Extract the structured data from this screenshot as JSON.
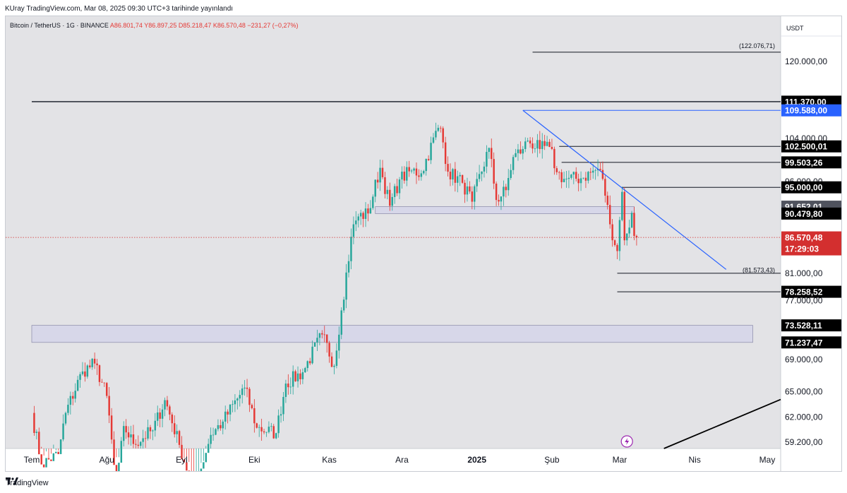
{
  "header": {
    "published": "KUray TradingView.com, Mar 08, 2025 09:30 UTC+3 tarihinde yayınlandı"
  },
  "footer": {
    "brand": "TradingView"
  },
  "colors": {
    "up": "#26a69a",
    "down": "#e53935",
    "trendline": "#2962ff",
    "current_price_bg": "#d32f2f",
    "highlight_label_bg": "#2962ff",
    "label_bg": "#000000"
  },
  "chart_data": {
    "type": "candlestick",
    "title": "Bitcoin / TetherUS · 1G · BINANCE",
    "ohlc_legend": {
      "open": "A86.801,74",
      "high": "Y86.897,25",
      "low": "D85.218,47",
      "close": "K86.570,48",
      "change": "−231,27 (−0,27%)"
    },
    "currency": "USDT",
    "y_ticks": [
      "120.000,00",
      "104.000,00",
      "96.000,00",
      "81.000,00",
      "77.000,00",
      "69.000,00",
      "65.000,00",
      "62.000,00",
      "59.200,00"
    ],
    "y_tick_values": [
      120000,
      104000,
      96000,
      81000,
      77000,
      69000,
      65000,
      62000,
      59200
    ],
    "x_ticks": [
      "Tem",
      "Ağu",
      "Eyl",
      "Eki",
      "Kas",
      "Ara",
      "2025",
      "Şub",
      "Mar",
      "Nis",
      "May"
    ],
    "x_tick_dates": [
      "2024-07-01",
      "2024-08-01",
      "2024-09-01",
      "2024-10-01",
      "2024-11-01",
      "2024-12-01",
      "2025-01-01",
      "2025-02-01",
      "2025-03-01",
      "2025-04-01",
      "2025-05-01"
    ],
    "price_labels": [
      {
        "text": "111.370,00",
        "value": 111370,
        "style": "black"
      },
      {
        "text": "109.588,00",
        "value": 109588,
        "style": "blue"
      },
      {
        "text": "102.500,01",
        "value": 102500.01,
        "style": "black"
      },
      {
        "text": "99.503,26",
        "value": 99503.26,
        "style": "black"
      },
      {
        "text": "95.000,00",
        "value": 95000,
        "style": "black"
      },
      {
        "text": "91.652,01",
        "value": 91652.01,
        "style": "grey"
      },
      {
        "text": "90.479,80",
        "value": 90479.8,
        "style": "black"
      },
      {
        "text": "86.570,48",
        "value": 86570.48,
        "style": "current"
      },
      {
        "text": "78.258,52",
        "value": 78258.52,
        "style": "black"
      },
      {
        "text": "73.528,11",
        "value": 73528.11,
        "style": "black"
      },
      {
        "text": "71.237,47",
        "value": 71237.47,
        "style": "black"
      }
    ],
    "countdown": "17:29:03",
    "annotations": [
      {
        "text": "(122.076,71)",
        "value": 122076.71
      },
      {
        "text": "(81.573,43)",
        "value": 81573.43
      }
    ],
    "levels": [
      {
        "value": 111370,
        "from": "2024-07-01",
        "to": "2025-05-10"
      },
      {
        "value": 109588,
        "from": "2025-01-20",
        "to": "2025-05-10"
      },
      {
        "value": 102500.01,
        "from": "2025-02-04",
        "to": "2025-05-10"
      },
      {
        "value": 99503.26,
        "from": "2025-02-05",
        "to": "2025-05-10"
      },
      {
        "value": 95000,
        "from": "2025-03-02",
        "to": "2025-05-10"
      },
      {
        "value": 81000,
        "from": "2025-02-28",
        "to": "2025-05-10"
      },
      {
        "value": 78258.52,
        "from": "2025-02-28",
        "to": "2025-05-10"
      },
      {
        "value": 122076.71,
        "from": "2025-01-24",
        "to": "2025-05-10"
      }
    ],
    "zones": [
      {
        "from_value": 90479.8,
        "to_value": 91652.01,
        "from": "2024-11-20",
        "to": "2025-03-07"
      },
      {
        "from_value": 71237.47,
        "to_value": 73528.11,
        "from": "2024-07-01",
        "to": "2025-04-25"
      }
    ],
    "trendlines": [
      {
        "x1": "2025-01-20",
        "y1": 109588,
        "x2": "2025-04-14",
        "y2": 81573.43,
        "color": "blue"
      },
      {
        "x1": "2025-02-26",
        "y1": 56200,
        "x2": "2025-05-10",
        "y2": 64500,
        "color": "black"
      }
    ],
    "candles": {
      "start": "2024-07-01",
      "interval_days": 1,
      "anchors": [
        [
          "2024-07-01",
          62500
        ],
        [
          "2024-07-05",
          56800
        ],
        [
          "2024-07-12",
          57900
        ],
        [
          "2024-07-15",
          62500
        ],
        [
          "2024-07-22",
          67500
        ],
        [
          "2024-07-27",
          68500
        ],
        [
          "2024-08-01",
          64500
        ],
        [
          "2024-08-05",
          54000
        ],
        [
          "2024-08-08",
          61000
        ],
        [
          "2024-08-12",
          59000
        ],
        [
          "2024-08-20",
          60500
        ],
        [
          "2024-08-25",
          64000
        ],
        [
          "2024-08-31",
          58900
        ],
        [
          "2024-09-06",
          53900
        ],
        [
          "2024-09-13",
          60000
        ],
        [
          "2024-09-18",
          61500
        ],
        [
          "2024-09-27",
          65500
        ],
        [
          "2024-10-02",
          60800
        ],
        [
          "2024-10-10",
          60200
        ],
        [
          "2024-10-14",
          66000
        ],
        [
          "2024-10-21",
          67400
        ],
        [
          "2024-10-29",
          72300
        ],
        [
          "2024-11-03",
          68200
        ],
        [
          "2024-11-06",
          75600
        ],
        [
          "2024-11-11",
          88700
        ],
        [
          "2024-11-13",
          90000
        ],
        [
          "2024-11-17",
          90500
        ],
        [
          "2024-11-22",
          98500
        ],
        [
          "2024-11-26",
          91800
        ],
        [
          "2024-11-30",
          96400
        ],
        [
          "2024-12-05",
          98000
        ],
        [
          "2024-12-09",
          97500
        ],
        [
          "2024-12-16",
          106100
        ],
        [
          "2024-12-17",
          106000
        ],
        [
          "2024-12-20",
          97800
        ],
        [
          "2024-12-26",
          95800
        ],
        [
          "2024-12-30",
          92500
        ],
        [
          "2025-01-06",
          102200
        ],
        [
          "2025-01-09",
          92800
        ],
        [
          "2025-01-13",
          94500
        ],
        [
          "2025-01-16",
          100500
        ],
        [
          "2025-01-20",
          102000
        ],
        [
          "2025-01-22",
          103600
        ],
        [
          "2025-01-27",
          102000
        ],
        [
          "2025-01-31",
          102400
        ],
        [
          "2025-02-03",
          97700
        ],
        [
          "2025-02-06",
          96500
        ],
        [
          "2025-02-13",
          96600
        ],
        [
          "2025-02-20",
          98300
        ],
        [
          "2025-02-22",
          96500
        ],
        [
          "2025-02-25",
          88700
        ],
        [
          "2025-02-28",
          84400
        ],
        [
          "2025-03-02",
          94200
        ],
        [
          "2025-03-03",
          86100
        ],
        [
          "2025-03-04",
          87200
        ],
        [
          "2025-03-06",
          90600
        ],
        [
          "2025-03-07",
          86801.74
        ],
        [
          "2025-03-08",
          86570.48
        ]
      ]
    }
  }
}
